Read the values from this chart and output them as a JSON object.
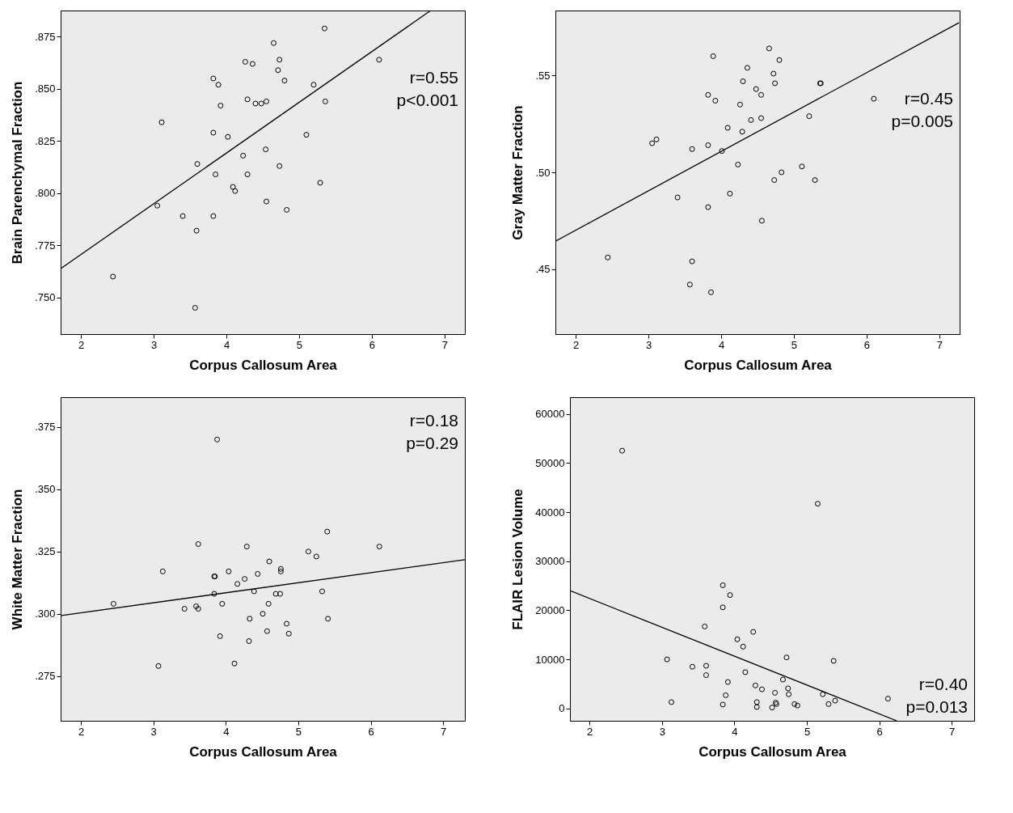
{
  "chart_data": [
    {
      "type": "scatter",
      "xlabel": "Corpus Callosum Area",
      "ylabel": "Brain Parenchymal Fraction",
      "xlim": [
        1.72,
        7.28
      ],
      "xticks": [
        2,
        3,
        4,
        5,
        6,
        7
      ],
      "ylim": [
        0.7324,
        0.8876
      ],
      "yticks": [
        {
          "value": 0.75,
          "label": ".750"
        },
        {
          "value": 0.775,
          "label": ".775"
        },
        {
          "value": 0.8,
          "label": ".800"
        },
        {
          "value": 0.825,
          "label": ".825"
        },
        {
          "value": 0.85,
          "label": ".850"
        },
        {
          "value": 0.875,
          "label": ".875"
        }
      ],
      "grid": false,
      "annotations": [
        "r=0.55",
        "p<0.001"
      ],
      "series": [
        {
          "marker": "circle",
          "color": "#000000",
          "x": [
            2.44,
            3.05,
            3.11,
            3.4,
            3.57,
            3.59,
            3.6,
            3.82,
            3.82,
            3.82,
            3.85,
            3.89,
            3.92,
            4.02,
            4.09,
            4.12,
            4.23,
            4.26,
            4.29,
            4.29,
            4.36,
            4.4,
            4.48,
            4.55,
            4.54,
            4.55,
            4.65,
            4.71,
            4.73,
            4.73,
            4.8,
            4.83,
            5.1,
            5.2,
            5.29,
            5.35,
            5.36,
            6.1
          ],
          "values": [
            0.76,
            0.794,
            0.834,
            0.789,
            0.745,
            0.782,
            0.814,
            0.789,
            0.829,
            0.855,
            0.809,
            0.852,
            0.842,
            0.827,
            0.803,
            0.801,
            0.818,
            0.863,
            0.845,
            0.809,
            0.862,
            0.843,
            0.843,
            0.844,
            0.821,
            0.796,
            0.872,
            0.859,
            0.864,
            0.813,
            0.854,
            0.792,
            0.828,
            0.852,
            0.805,
            0.879,
            0.844,
            0.864
          ]
        },
        {
          "type": "line",
          "marker": "none",
          "color": "#000000",
          "line_style": "solid",
          "x": [
            1.73,
            6.81
          ],
          "values": [
            0.764,
            0.8876
          ]
        }
      ]
    },
    {
      "type": "scatter",
      "xlabel": "Corpus Callosum Area",
      "ylabel": "Gray Matter Fraction",
      "xlim": [
        1.72,
        7.28
      ],
      "xticks": [
        2,
        3,
        4,
        5,
        6,
        7
      ],
      "ylim": [
        0.4164,
        0.5836
      ],
      "yticks": [
        {
          "value": 0.45,
          "label": ".45"
        },
        {
          "value": 0.5,
          "label": ".50"
        },
        {
          "value": 0.55,
          "label": ".55"
        }
      ],
      "grid": false,
      "annotations": [
        "r=0.45",
        "p=0.005"
      ],
      "series": [
        {
          "marker": "circle",
          "color": "#000000",
          "x": [
            2.44,
            3.05,
            3.11,
            3.4,
            3.57,
            3.6,
            3.6,
            3.82,
            3.82,
            3.82,
            3.89,
            3.86,
            3.92,
            4.01,
            4.09,
            4.12,
            4.23,
            4.26,
            4.29,
            4.3,
            4.36,
            4.41,
            4.48,
            4.55,
            4.55,
            4.56,
            4.66,
            4.72,
            4.73,
            4.74,
            4.8,
            4.83,
            5.11,
            5.21,
            5.29,
            5.36,
            5.37,
            6.1
          ],
          "values": [
            0.456,
            0.515,
            0.517,
            0.487,
            0.442,
            0.512,
            0.454,
            0.54,
            0.514,
            0.482,
            0.56,
            0.438,
            0.537,
            0.511,
            0.523,
            0.489,
            0.504,
            0.535,
            0.521,
            0.547,
            0.554,
            0.527,
            0.543,
            0.528,
            0.54,
            0.475,
            0.564,
            0.551,
            0.496,
            0.546,
            0.558,
            0.5,
            0.503,
            0.529,
            0.496,
            0.546,
            0.546,
            0.538
          ]
        },
        {
          "type": "line",
          "marker": "none",
          "color": "#000000",
          "line_style": "solid",
          "x": [
            1.72,
            7.27
          ],
          "values": [
            0.4644,
            0.5773
          ]
        }
      ]
    },
    {
      "type": "scatter",
      "xlabel": "Corpus Callosum Area",
      "ylabel": "White Matter Fraction",
      "xlim": [
        1.72,
        7.3
      ],
      "xticks": [
        2,
        3,
        4,
        5,
        6,
        7
      ],
      "ylim": [
        0.257,
        0.387
      ],
      "yticks": [
        {
          "value": 0.275,
          "label": ".275"
        },
        {
          "value": 0.3,
          "label": ".300"
        },
        {
          "value": 0.325,
          "label": ".325"
        },
        {
          "value": 0.35,
          "label": ".350"
        },
        {
          "value": 0.375,
          "label": ".375"
        }
      ],
      "grid": false,
      "annotations": [
        "r=0.18",
        "p=0.29"
      ],
      "series": [
        {
          "marker": "circle",
          "color": "#000000",
          "x": [
            2.45,
            3.07,
            3.13,
            3.43,
            3.59,
            3.62,
            3.62,
            3.84,
            3.85,
            3.84,
            3.88,
            3.92,
            3.95,
            4.04,
            4.12,
            4.16,
            4.26,
            4.29,
            4.32,
            4.33,
            4.39,
            4.44,
            4.51,
            4.57,
            4.59,
            4.6,
            4.69,
            4.75,
            4.76,
            4.76,
            4.84,
            4.87,
            5.14,
            5.25,
            5.33,
            5.4,
            5.41,
            6.12
          ],
          "values": [
            0.304,
            0.279,
            0.317,
            0.302,
            0.303,
            0.328,
            0.302,
            0.315,
            0.315,
            0.308,
            0.37,
            0.291,
            0.304,
            0.317,
            0.28,
            0.312,
            0.314,
            0.327,
            0.289,
            0.298,
            0.309,
            0.316,
            0.3,
            0.293,
            0.304,
            0.321,
            0.308,
            0.308,
            0.318,
            0.317,
            0.296,
            0.292,
            0.325,
            0.323,
            0.309,
            0.333,
            0.298,
            0.327
          ]
        },
        {
          "type": "line",
          "marker": "none",
          "color": "#000000",
          "line_style": "solid",
          "x": [
            1.73,
            7.3
          ],
          "values": [
            0.2993,
            0.3217
          ]
        }
      ]
    },
    {
      "type": "scatter",
      "xlabel": "Corpus Callosum Area",
      "ylabel": "FLAIR Lesion Volume",
      "xlim": [
        1.73,
        7.31
      ],
      "xticks": [
        2,
        3,
        4,
        5,
        6,
        7
      ],
      "ylim": [
        -2500,
        63400
      ],
      "yticks": [
        0,
        {
          "value": 10000,
          "label": "10000"
        },
        {
          "value": 20000,
          "label": "20000"
        },
        {
          "value": 30000,
          "label": "30000"
        },
        {
          "value": 40000,
          "label": "40000"
        },
        {
          "value": 50000,
          "label": "50000"
        },
        {
          "value": 60000,
          "label": "60000"
        }
      ],
      "grid": false,
      "annotations": [
        "r=0.40",
        "p=0.013"
      ],
      "series": [
        {
          "marker": "circle",
          "color": "#000000",
          "x": [
            2.45,
            3.07,
            3.13,
            3.42,
            3.59,
            3.61,
            3.61,
            3.84,
            3.84,
            3.94,
            3.84,
            3.88,
            3.91,
            4.04,
            4.12,
            4.15,
            4.26,
            4.29,
            4.31,
            4.31,
            4.38,
            4.52,
            4.56,
            4.57,
            4.58,
            4.67,
            4.72,
            4.74,
            4.75,
            4.83,
            4.87,
            5.15,
            5.22,
            5.3,
            5.37,
            5.39,
            6.12
          ],
          "values": [
            52500,
            10000,
            1300,
            8500,
            16700,
            8700,
            6800,
            25100,
            20600,
            23100,
            800,
            2700,
            5400,
            14100,
            12600,
            7400,
            15600,
            4700,
            1300,
            300,
            3900,
            200,
            3200,
            1200,
            900,
            5900,
            10400,
            4100,
            2900,
            900,
            600,
            41700,
            2900,
            900,
            9700,
            1600,
            2000
          ]
        },
        {
          "type": "line",
          "marker": "none",
          "color": "#000000",
          "line_style": "solid",
          "x": [
            1.73,
            6.24
          ],
          "values": [
            24000,
            -2500
          ]
        }
      ]
    }
  ]
}
